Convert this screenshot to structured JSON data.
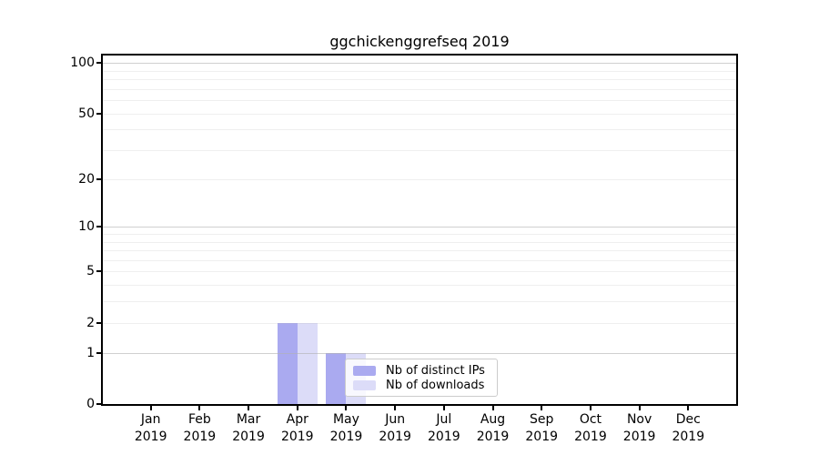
{
  "chart_data": {
    "type": "bar",
    "title": "ggchickenggrefseq 2019",
    "categories": [
      "Jan",
      "Feb",
      "Mar",
      "Apr",
      "May",
      "Jun",
      "Jul",
      "Aug",
      "Sep",
      "Oct",
      "Nov",
      "Dec"
    ],
    "year_label": "2019",
    "series": [
      {
        "name": "Nb of distinct IPs",
        "color": "#aaaaf0",
        "values": [
          0,
          0,
          0,
          2,
          1,
          0,
          0,
          0,
          0,
          0,
          0,
          0
        ]
      },
      {
        "name": "Nb of downloads",
        "color": "#dcdcf8",
        "values": [
          0,
          0,
          0,
          2,
          1,
          0,
          0,
          0,
          0,
          0,
          0,
          0
        ]
      }
    ],
    "xlabel": "",
    "ylabel": "",
    "yaxis": {
      "scale": "log1p",
      "tick_values": [
        0,
        1,
        2,
        5,
        10,
        20,
        50,
        100
      ],
      "tick_labels": [
        "0",
        "1",
        "2",
        "5",
        "10",
        "20",
        "50",
        "100"
      ],
      "ylim": [
        0,
        112
      ],
      "major_grid_values": [
        1,
        10,
        100
      ],
      "minor_grid_values": [
        2,
        3,
        4,
        5,
        6,
        7,
        8,
        9,
        20,
        30,
        40,
        50,
        60,
        70,
        80,
        90
      ],
      "grid": "horizontal-only"
    },
    "legend": {
      "position": "lower center-left inside axes",
      "entries": [
        "Nb of distinct IPs",
        "Nb of downloads"
      ]
    }
  },
  "colors": {
    "background": "#ffffff",
    "spine": "#000000",
    "grid_major": "rgba(176,176,176,0.6)",
    "grid_minor": "rgba(176,176,176,0.2)",
    "tick_text": "#000000",
    "legend_border": "#cccccc",
    "bar_distinct_ips": "#aaaaf0",
    "bar_downloads": "#dcdcf8"
  }
}
